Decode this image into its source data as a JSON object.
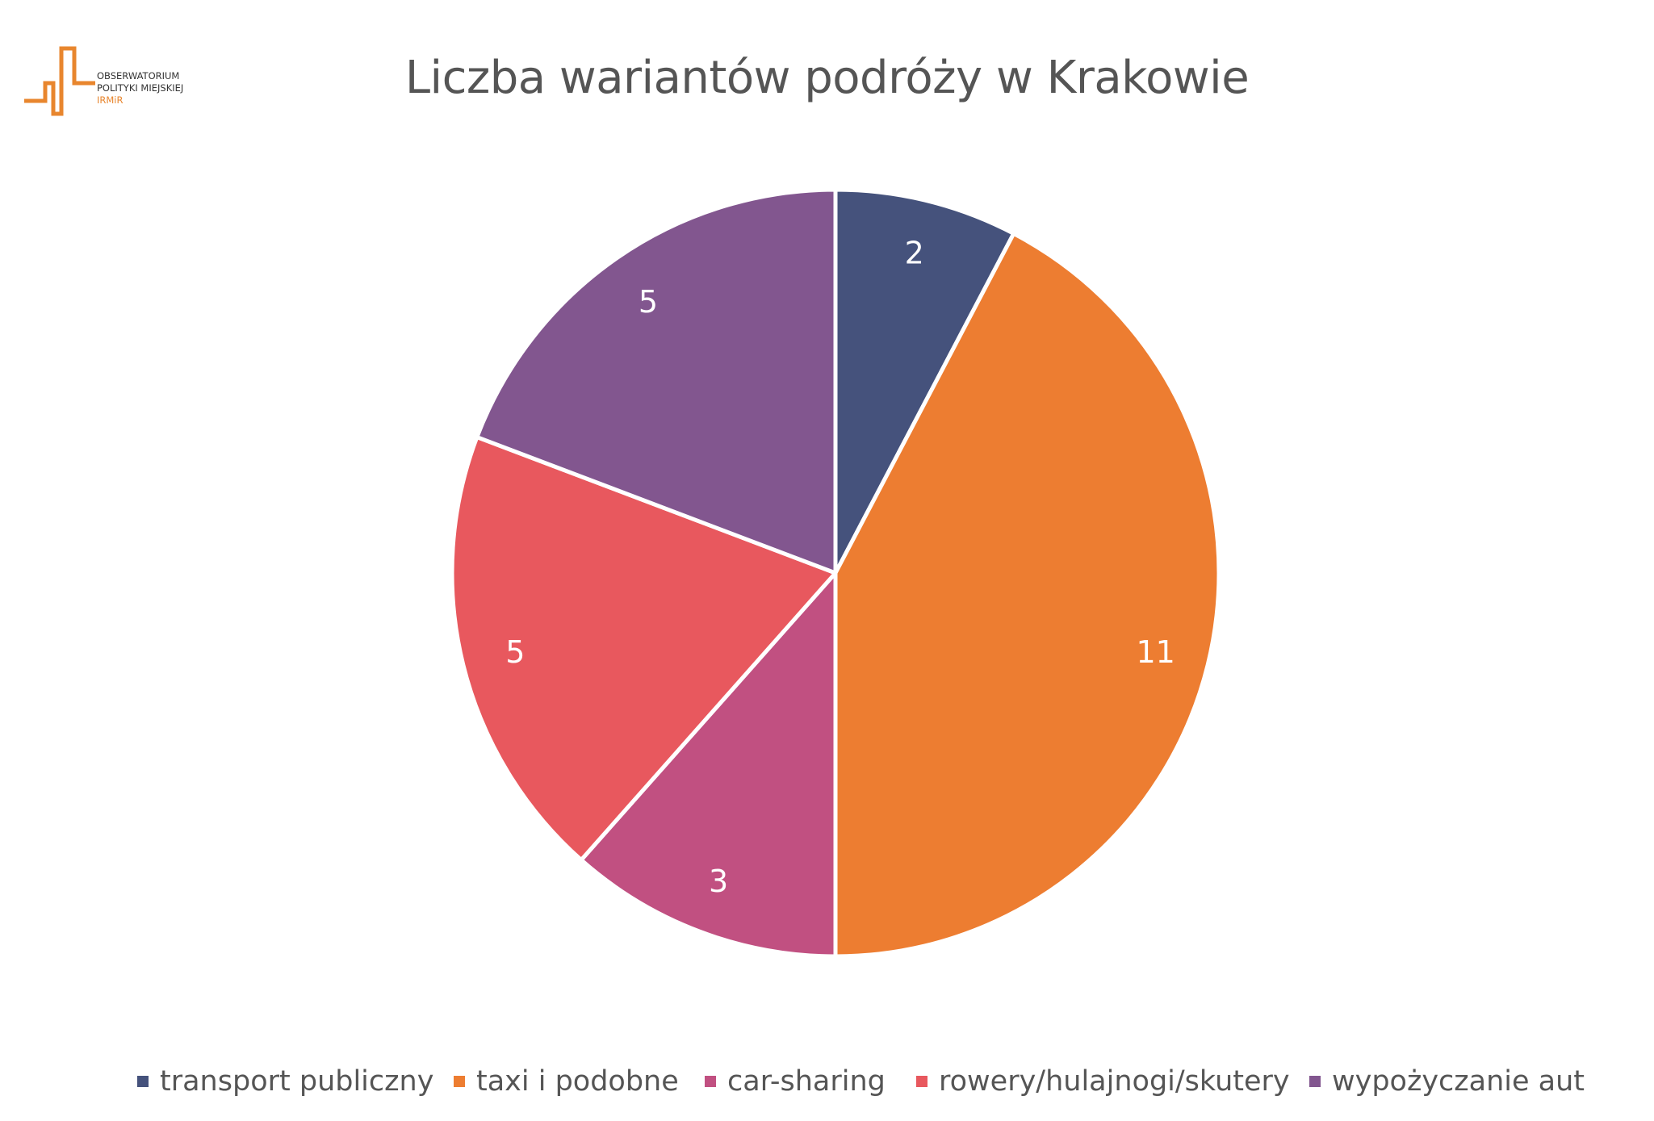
{
  "logo": {
    "line1": "OBSERWATORIUM",
    "line2": "POLITYKI MIEJSKIEJ",
    "line3": "IRMiR",
    "color": "#e8862e"
  },
  "chart_data": {
    "type": "pie",
    "title": "Liczba wariantów podróży w Krakowie",
    "categories": [
      "transport publiczny",
      "taxi i podobne",
      "car-sharing",
      "rowery/hulajnogi/skutery",
      "wypożyczanie aut"
    ],
    "values": [
      2,
      11,
      3,
      5,
      5
    ],
    "colors": [
      "#45527c",
      "#ed7d31",
      "#c15081",
      "#e8585e",
      "#82568f"
    ],
    "data_labels": [
      "2",
      "11",
      "3",
      "5",
      "5"
    ],
    "legend_position": "bottom",
    "start_angle_deg": 0,
    "direction": "clockwise"
  }
}
